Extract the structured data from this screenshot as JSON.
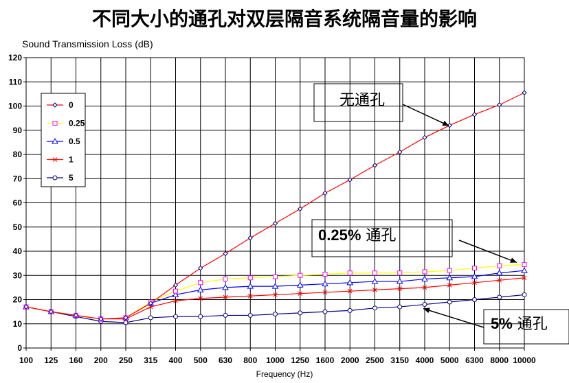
{
  "chart_data": {
    "type": "line",
    "title": "不同大小的通孔对双层隔音系统隔音量的影响",
    "ylabel": "Sound Transmission Loss (dB)",
    "xlabel": "Frequency (Hz)",
    "categories": [
      "100",
      "125",
      "160",
      "200",
      "250",
      "315",
      "400",
      "500",
      "630",
      "800",
      "1000",
      "1250",
      "1600",
      "2000",
      "2500",
      "3150",
      "4000",
      "5000",
      "6300",
      "8000",
      "10000"
    ],
    "ylim": [
      0,
      120
    ],
    "yticks": [
      0,
      10,
      20,
      30,
      40,
      50,
      60,
      70,
      80,
      90,
      100,
      110,
      120
    ],
    "grid": true,
    "legend_position": "left",
    "series": [
      {
        "name": "0",
        "color": "#ff0000",
        "marker": "diamond",
        "marker_color": "#000080",
        "values": [
          17,
          15,
          13.5,
          12,
          12.5,
          18.5,
          26,
          33,
          39,
          45.5,
          51.5,
          57.5,
          64,
          69.5,
          75.5,
          81,
          87,
          92,
          96.5,
          100.5,
          105.5
        ]
      },
      {
        "name": "0.25",
        "color": "#ffff00",
        "marker": "square",
        "marker_color": "#ff00ff",
        "values": [
          17,
          15,
          13.5,
          12,
          12.5,
          19,
          23.5,
          27,
          28.5,
          29,
          29.5,
          30,
          30.5,
          31,
          31,
          31,
          31.5,
          32,
          33,
          34,
          34.5
        ]
      },
      {
        "name": "0.5",
        "color": "#0000ff",
        "marker": "triangle",
        "marker_color": "#0000ff",
        "values": [
          17,
          15,
          13.5,
          12,
          12.5,
          18.5,
          22,
          24,
          25,
          25.5,
          25.5,
          26,
          26.5,
          27,
          27.5,
          27.5,
          28.5,
          29,
          29.5,
          31,
          32
        ]
      },
      {
        "name": "1",
        "color": "#ff0000",
        "marker": "x",
        "marker_color": "#ff0000",
        "values": [
          17,
          15,
          13.5,
          12,
          12,
          17,
          19.5,
          20.5,
          21,
          21.5,
          22,
          22.5,
          23,
          23.5,
          24,
          24.5,
          25,
          26,
          27,
          28,
          29
        ]
      },
      {
        "name": "5",
        "color": "#000080",
        "marker": "circle",
        "marker_color": "#000080",
        "values": [
          17,
          15,
          13,
          11,
          10.5,
          12.5,
          13,
          13,
          13.5,
          13.5,
          14,
          14.5,
          15,
          15.5,
          16.5,
          17,
          18,
          19,
          20,
          21,
          22
        ]
      }
    ],
    "annotations": [
      {
        "text": "无通孔",
        "target_series": "0",
        "target_category": "5000"
      },
      {
        "text_bold": "0.25%",
        "text": " 通孔",
        "target_series": "0.25",
        "target_category": "10000"
      },
      {
        "text_bold": "5%",
        "text": " 通孔",
        "target_series": "5",
        "target_category": "4000"
      }
    ]
  }
}
